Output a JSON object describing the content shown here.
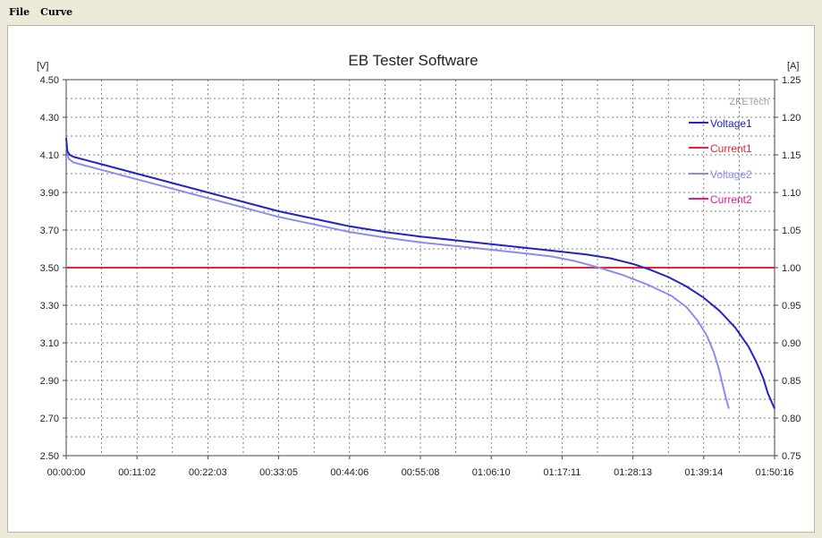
{
  "menu": {
    "file": "File",
    "curve": "Curve"
  },
  "chart_data": {
    "type": "line",
    "title": "EB Tester Software",
    "ylabel_left": "[V]",
    "ylabel_right": "[A]",
    "watermark": "ZKETech",
    "xlim": [
      "00:00:00",
      "01:50:16"
    ],
    "ylim_left": [
      2.5,
      4.5
    ],
    "ylim_right": [
      0.75,
      1.25
    ],
    "grid": true,
    "legend_position": "top-right",
    "x_tick_labels": [
      "00:00:00",
      "00:11:02",
      "00:22:03",
      "00:33:05",
      "00:44:06",
      "00:55:08",
      "01:06:10",
      "01:17:11",
      "01:28:13",
      "01:39:14",
      "01:50:16"
    ],
    "y_tick_labels_left": [
      "4.50",
      "4.30",
      "4.10",
      "3.90",
      "3.70",
      "3.50",
      "3.30",
      "3.10",
      "2.90",
      "2.70",
      "2.50"
    ],
    "y_tick_labels_right": [
      "1.25",
      "1.20",
      "1.15",
      "1.10",
      "1.05",
      "1.00",
      "0.95",
      "0.90",
      "0.85",
      "0.80",
      "0.75"
    ],
    "series": [
      {
        "name": "Voltage1",
        "axis": "left",
        "color": "#2323c8",
        "x": [
          "00:00:00",
          "00:00:11",
          "00:00:33",
          "00:01:06",
          "00:03:19",
          "00:05:31",
          "00:11:02",
          "00:16:32",
          "00:22:03",
          "00:27:34",
          "00:33:05",
          "00:38:35",
          "00:44:06",
          "00:49:37",
          "00:55:08",
          "01:00:39",
          "01:06:10",
          "01:11:40",
          "01:17:11",
          "01:20:56",
          "01:24:41",
          "01:28:13",
          "01:30:49",
          "01:33:44",
          "01:36:33",
          "01:39:14",
          "01:41:42",
          "01:44:10",
          "01:46:12",
          "01:47:25",
          "01:48:31",
          "01:49:14",
          "01:50:16"
        ],
        "y": [
          4.19,
          4.12,
          4.1,
          4.09,
          4.07,
          4.05,
          4.0,
          3.95,
          3.9,
          3.85,
          3.8,
          3.76,
          3.72,
          3.69,
          3.665,
          3.645,
          3.625,
          3.605,
          3.585,
          3.57,
          3.55,
          3.52,
          3.49,
          3.45,
          3.4,
          3.34,
          3.27,
          3.18,
          3.08,
          3.0,
          2.91,
          2.83,
          2.75
        ]
      },
      {
        "name": "Current1",
        "axis": "right",
        "color": "#e8243a",
        "x": [
          "00:00:00",
          "01:50:16"
        ],
        "y": [
          1.0,
          1.0
        ]
      },
      {
        "name": "Voltage2",
        "axis": "left",
        "color": "#8c8cf0",
        "x": [
          "00:00:00",
          "00:00:22",
          "00:01:06",
          "00:03:19",
          "00:05:31",
          "00:11:02",
          "00:16:32",
          "00:22:03",
          "00:27:34",
          "00:33:05",
          "00:38:35",
          "00:44:06",
          "00:49:37",
          "00:55:08",
          "01:00:39",
          "01:06:10",
          "01:11:40",
          "01:15:26",
          "01:19:12",
          "01:22:57",
          "01:26:43",
          "01:30:29",
          "01:34:14",
          "01:36:33",
          "01:38:14",
          "01:39:42",
          "01:40:48",
          "01:41:36",
          "01:42:14",
          "01:42:44",
          "01:43:09"
        ],
        "y": [
          4.15,
          4.08,
          4.06,
          4.04,
          4.02,
          3.97,
          3.92,
          3.87,
          3.82,
          3.77,
          3.73,
          3.69,
          3.66,
          3.635,
          3.615,
          3.595,
          3.575,
          3.56,
          3.535,
          3.5,
          3.46,
          3.41,
          3.35,
          3.29,
          3.22,
          3.14,
          3.05,
          2.96,
          2.87,
          2.8,
          2.75
        ]
      },
      {
        "name": "Current2",
        "axis": "right",
        "color": "#e81890",
        "x": [
          "00:00:00",
          "01:50:16"
        ],
        "y": [
          1.0,
          1.0
        ]
      }
    ]
  }
}
